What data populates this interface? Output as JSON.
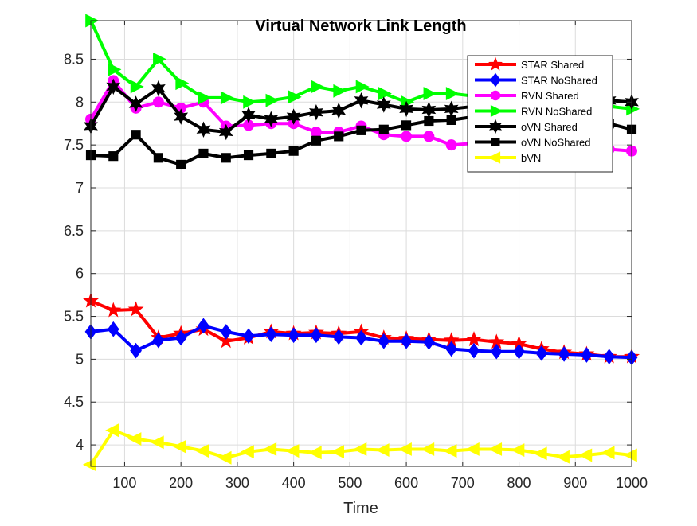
{
  "chart_data": {
    "type": "line",
    "title": "Virtual Network Link Length",
    "xlabel": "Time",
    "ylabel": "",
    "xlim": [
      40,
      1000
    ],
    "ylim": [
      3.75,
      8.95
    ],
    "x_ticks": [
      100,
      200,
      300,
      400,
      500,
      600,
      700,
      800,
      900,
      1000
    ],
    "y_ticks": [
      4,
      4.5,
      5,
      5.5,
      6,
      6.5,
      7,
      7.5,
      8,
      8.5
    ],
    "x_tick_labels": [
      "100",
      "200",
      "300",
      "400",
      "500",
      "600",
      "700",
      "800",
      "900",
      "1000"
    ],
    "y_tick_labels": [
      "4",
      "4.5",
      "5",
      "5.5",
      "6",
      "6.5",
      "7",
      "7.5",
      "8",
      "8.5"
    ],
    "grid": true,
    "legend_position": "top-right",
    "x": [
      40,
      80,
      120,
      160,
      200,
      240,
      280,
      320,
      360,
      400,
      440,
      480,
      520,
      560,
      600,
      640,
      680,
      720,
      760,
      800,
      840,
      880,
      920,
      960,
      1000
    ],
    "series": [
      {
        "name": "STAR Shared",
        "color": "#ff0000",
        "marker": "star",
        "values": [
          5.68,
          5.57,
          5.58,
          5.25,
          5.3,
          5.35,
          5.21,
          5.25,
          5.32,
          5.3,
          5.31,
          5.3,
          5.32,
          5.25,
          5.24,
          5.23,
          5.22,
          5.23,
          5.2,
          5.18,
          5.12,
          5.08,
          5.06,
          5.03,
          5.03
        ]
      },
      {
        "name": "STAR NoShared",
        "color": "#0000ff",
        "marker": "diamond",
        "values": [
          5.32,
          5.35,
          5.1,
          5.22,
          5.25,
          5.39,
          5.32,
          5.27,
          5.29,
          5.28,
          5.28,
          5.26,
          5.25,
          5.21,
          5.21,
          5.2,
          5.12,
          5.1,
          5.09,
          5.09,
          5.07,
          5.06,
          5.05,
          5.03,
          5.02
        ]
      },
      {
        "name": "RVN Shared",
        "color": "#ff00ff",
        "marker": "circle",
        "values": [
          7.8,
          8.25,
          7.93,
          8.0,
          7.93,
          8.0,
          7.72,
          7.73,
          7.75,
          7.75,
          7.65,
          7.65,
          7.72,
          7.62,
          7.6,
          7.6,
          7.5,
          7.52,
          7.48,
          7.4,
          7.42,
          7.4,
          7.42,
          7.45,
          7.43
        ]
      },
      {
        "name": "RVN NoShared",
        "color": "#00ff00",
        "marker": "triangle-right",
        "values": [
          8.95,
          8.38,
          8.18,
          8.5,
          8.22,
          8.05,
          8.05,
          8.0,
          8.02,
          8.06,
          8.18,
          8.13,
          8.18,
          8.1,
          8.0,
          8.1,
          8.1,
          8.07,
          8.07,
          8.07,
          8.05,
          8.0,
          7.97,
          7.95,
          7.92
        ]
      },
      {
        "name": "oVN Shared",
        "color": "#000000",
        "marker": "hexagram",
        "values": [
          7.72,
          8.18,
          7.98,
          8.16,
          7.83,
          7.68,
          7.65,
          7.85,
          7.8,
          7.83,
          7.88,
          7.9,
          8.02,
          7.97,
          7.92,
          7.91,
          7.92,
          7.95,
          7.96,
          7.99,
          8.0,
          8.0,
          8.01,
          8.02,
          8.0
        ]
      },
      {
        "name": "oVN NoShared",
        "color": "#000000",
        "marker": "square",
        "values": [
          7.38,
          7.37,
          7.62,
          7.35,
          7.27,
          7.4,
          7.35,
          7.38,
          7.4,
          7.43,
          7.55,
          7.6,
          7.67,
          7.68,
          7.73,
          7.78,
          7.79,
          7.83,
          7.83,
          7.83,
          7.81,
          7.79,
          7.77,
          7.75,
          7.68
        ]
      },
      {
        "name": "bVN",
        "color": "#ffff00",
        "marker": "triangle-left",
        "values": [
          3.77,
          4.17,
          4.07,
          4.03,
          3.98,
          3.93,
          3.85,
          3.92,
          3.95,
          3.93,
          3.91,
          3.92,
          3.95,
          3.94,
          3.95,
          3.95,
          3.93,
          3.95,
          3.95,
          3.94,
          3.9,
          3.86,
          3.88,
          3.91,
          3.88
        ]
      }
    ]
  }
}
